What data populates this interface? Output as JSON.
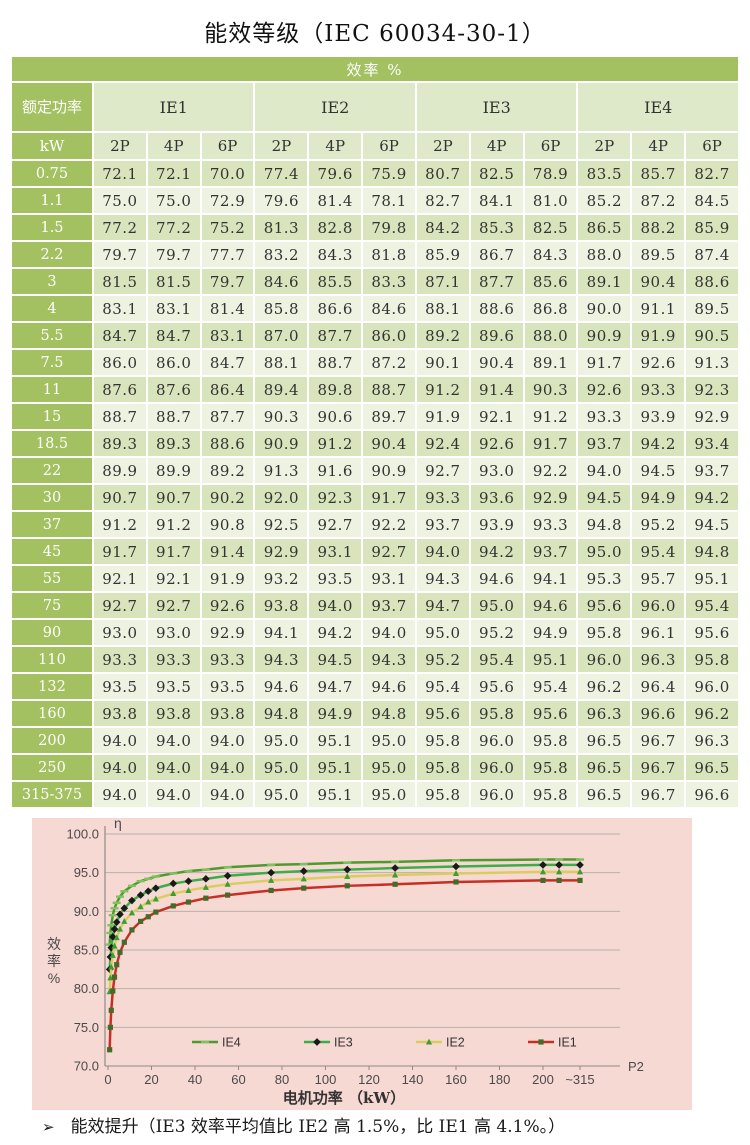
{
  "page": {
    "title": "能效等级（IEC 60034-30-1）"
  },
  "colors": {
    "table_green": "#a3c160",
    "subheader_pale": "#dee9c9",
    "row_dark": "#d8e4bc",
    "row_light": "#edf2e1",
    "chart_background": "#f7d9d3",
    "ie4_line": "#4e9a2e",
    "ie3_line": "#3cae49",
    "ie2_line": "#d9cd60",
    "ie1_line": "#c72f24"
  },
  "table": {
    "efficiency_header": "效率 %",
    "rated_power_label": "额定功率",
    "unit_label": "kW",
    "groups": [
      "IE1",
      "IE2",
      "IE3",
      "IE4"
    ],
    "pole_labels": [
      "2P",
      "4P",
      "6P"
    ],
    "rows": [
      {
        "kw": "0.75",
        "values": [
          "72.1",
          "72.1",
          "70.0",
          "77.4",
          "79.6",
          "75.9",
          "80.7",
          "82.5",
          "78.9",
          "83.5",
          "85.7",
          "82.7"
        ]
      },
      {
        "kw": "1.1",
        "values": [
          "75.0",
          "75.0",
          "72.9",
          "79.6",
          "81.4",
          "78.1",
          "82.7",
          "84.1",
          "81.0",
          "85.2",
          "87.2",
          "84.5"
        ]
      },
      {
        "kw": "1.5",
        "values": [
          "77.2",
          "77.2",
          "75.2",
          "81.3",
          "82.8",
          "79.8",
          "84.2",
          "85.3",
          "82.5",
          "86.5",
          "88.2",
          "85.9"
        ]
      },
      {
        "kw": "2.2",
        "values": [
          "79.7",
          "79.7",
          "77.7",
          "83.2",
          "84.3",
          "81.8",
          "85.9",
          "86.7",
          "84.3",
          "88.0",
          "89.5",
          "87.4"
        ]
      },
      {
        "kw": "3",
        "values": [
          "81.5",
          "81.5",
          "79.7",
          "84.6",
          "85.5",
          "83.3",
          "87.1",
          "87.7",
          "85.6",
          "89.1",
          "90.4",
          "88.6"
        ]
      },
      {
        "kw": "4",
        "values": [
          "83.1",
          "83.1",
          "81.4",
          "85.8",
          "86.6",
          "84.6",
          "88.1",
          "88.6",
          "86.8",
          "90.0",
          "91.1",
          "89.5"
        ]
      },
      {
        "kw": "5.5",
        "values": [
          "84.7",
          "84.7",
          "83.1",
          "87.0",
          "87.7",
          "86.0",
          "89.2",
          "89.6",
          "88.0",
          "90.9",
          "91.9",
          "90.5"
        ]
      },
      {
        "kw": "7.5",
        "values": [
          "86.0",
          "86.0",
          "84.7",
          "88.1",
          "88.7",
          "87.2",
          "90.1",
          "90.4",
          "89.1",
          "91.7",
          "92.6",
          "91.3"
        ]
      },
      {
        "kw": "11",
        "values": [
          "87.6",
          "87.6",
          "86.4",
          "89.4",
          "89.8",
          "88.7",
          "91.2",
          "91.4",
          "90.3",
          "92.6",
          "93.3",
          "92.3"
        ]
      },
      {
        "kw": "15",
        "values": [
          "88.7",
          "88.7",
          "87.7",
          "90.3",
          "90.6",
          "89.7",
          "91.9",
          "92.1",
          "91.2",
          "93.3",
          "93.9",
          "92.9"
        ]
      },
      {
        "kw": "18.5",
        "values": [
          "89.3",
          "89.3",
          "88.6",
          "90.9",
          "91.2",
          "90.4",
          "92.4",
          "92.6",
          "91.7",
          "93.7",
          "94.2",
          "93.4"
        ]
      },
      {
        "kw": "22",
        "values": [
          "89.9",
          "89.9",
          "89.2",
          "91.3",
          "91.6",
          "90.9",
          "92.7",
          "93.0",
          "92.2",
          "94.0",
          "94.5",
          "93.7"
        ]
      },
      {
        "kw": "30",
        "values": [
          "90.7",
          "90.7",
          "90.2",
          "92.0",
          "92.3",
          "91.7",
          "93.3",
          "93.6",
          "92.9",
          "94.5",
          "94.9",
          "94.2"
        ]
      },
      {
        "kw": "37",
        "values": [
          "91.2",
          "91.2",
          "90.8",
          "92.5",
          "92.7",
          "92.2",
          "93.7",
          "93.9",
          "93.3",
          "94.8",
          "95.2",
          "94.5"
        ]
      },
      {
        "kw": "45",
        "values": [
          "91.7",
          "91.7",
          "91.4",
          "92.9",
          "93.1",
          "92.7",
          "94.0",
          "94.2",
          "93.7",
          "95.0",
          "95.4",
          "94.8"
        ]
      },
      {
        "kw": "55",
        "values": [
          "92.1",
          "92.1",
          "91.9",
          "93.2",
          "93.5",
          "93.1",
          "94.3",
          "94.6",
          "94.1",
          "95.3",
          "95.7",
          "95.1"
        ]
      },
      {
        "kw": "75",
        "values": [
          "92.7",
          "92.7",
          "92.6",
          "93.8",
          "94.0",
          "93.7",
          "94.7",
          "95.0",
          "94.6",
          "95.6",
          "96.0",
          "95.4"
        ]
      },
      {
        "kw": "90",
        "values": [
          "93.0",
          "93.0",
          "92.9",
          "94.1",
          "94.2",
          "94.0",
          "95.0",
          "95.2",
          "94.9",
          "95.8",
          "96.1",
          "95.6"
        ]
      },
      {
        "kw": "110",
        "values": [
          "93.3",
          "93.3",
          "93.3",
          "94.3",
          "94.5",
          "94.3",
          "95.2",
          "95.4",
          "95.1",
          "96.0",
          "96.3",
          "95.8"
        ]
      },
      {
        "kw": "132",
        "values": [
          "93.5",
          "93.5",
          "93.5",
          "94.6",
          "94.7",
          "94.6",
          "95.4",
          "95.6",
          "95.4",
          "96.2",
          "96.4",
          "96.0"
        ]
      },
      {
        "kw": "160",
        "values": [
          "93.8",
          "93.8",
          "93.8",
          "94.8",
          "94.9",
          "94.8",
          "95.6",
          "95.8",
          "95.6",
          "96.3",
          "96.6",
          "96.2"
        ]
      },
      {
        "kw": "200",
        "values": [
          "94.0",
          "94.0",
          "94.0",
          "95.0",
          "95.1",
          "95.0",
          "95.8",
          "96.0",
          "95.8",
          "96.5",
          "96.7",
          "96.3"
        ]
      },
      {
        "kw": "250",
        "values": [
          "94.0",
          "94.0",
          "94.0",
          "95.0",
          "95.1",
          "95.0",
          "95.8",
          "96.0",
          "95.8",
          "96.5",
          "96.7",
          "96.5"
        ]
      },
      {
        "kw": "315-375",
        "values": [
          "94.0",
          "94.0",
          "94.0",
          "95.0",
          "95.1",
          "95.0",
          "95.8",
          "96.0",
          "95.8",
          "96.5",
          "96.7",
          "96.6"
        ]
      }
    ]
  },
  "chart_data": {
    "type": "line",
    "title": "",
    "xlabel": "电机功率 （kW）",
    "ylabel": "效率%",
    "y_axis_symbol": "η",
    "x_axis_end_label": "P2",
    "ylim": [
      70,
      100
    ],
    "ytick_step": 5,
    "ytick_labels": [
      "100.0",
      "95.0",
      "90.0",
      "85.0",
      "80.0",
      "75.0",
      "70.0"
    ],
    "x_ticks": [
      {
        "label": "0",
        "v": 0
      },
      {
        "label": "20",
        "v": 20
      },
      {
        "label": "40",
        "v": 40
      },
      {
        "label": "60",
        "v": 60
      },
      {
        "label": "80",
        "v": 80
      },
      {
        "label": "100",
        "v": 100
      },
      {
        "label": "120",
        "v": 120
      },
      {
        "label": "140",
        "v": 140
      },
      {
        "label": "160",
        "v": 160
      },
      {
        "label": "180",
        "v": 180
      },
      {
        "label": "200",
        "v": 200
      },
      {
        "label": "~315",
        "v": 315
      }
    ],
    "x": [
      0.75,
      1.1,
      1.5,
      2.2,
      3,
      4,
      5.5,
      7.5,
      11,
      15,
      18.5,
      22,
      30,
      37,
      45,
      55,
      75,
      90,
      110,
      132,
      160,
      200,
      250,
      315
    ],
    "series": [
      {
        "name": "IE4",
        "color": "#4e9a2e",
        "marker": "dash",
        "marker_color": "#7cc55e",
        "values": [
          85.7,
          87.2,
          88.2,
          89.5,
          90.4,
          91.1,
          91.9,
          92.6,
          93.3,
          93.9,
          94.2,
          94.5,
          94.9,
          95.2,
          95.4,
          95.7,
          96.0,
          96.1,
          96.3,
          96.4,
          96.6,
          96.7,
          96.7,
          96.7
        ]
      },
      {
        "name": "IE3",
        "color": "#3cae49",
        "marker": "diamond",
        "marker_color": "#1a1a1a",
        "values": [
          82.5,
          84.1,
          85.3,
          86.7,
          87.7,
          88.6,
          89.6,
          90.4,
          91.4,
          92.1,
          92.6,
          93.0,
          93.6,
          93.9,
          94.2,
          94.6,
          95.0,
          95.2,
          95.4,
          95.6,
          95.8,
          96.0,
          96.0,
          96.0
        ]
      },
      {
        "name": "IE2",
        "color": "#d9cd60",
        "marker": "triangle",
        "marker_color": "#3f9c35",
        "values": [
          79.6,
          81.4,
          82.8,
          84.3,
          85.5,
          86.6,
          87.7,
          88.7,
          89.8,
          90.6,
          91.2,
          91.6,
          92.3,
          92.7,
          93.1,
          93.5,
          94.0,
          94.2,
          94.5,
          94.7,
          94.9,
          95.1,
          95.1,
          95.1
        ]
      },
      {
        "name": "IE1",
        "color": "#c72f24",
        "marker": "square",
        "marker_color": "#456b29",
        "values": [
          72.1,
          75.0,
          77.2,
          79.7,
          81.5,
          83.1,
          84.7,
          86.0,
          87.6,
          88.7,
          89.3,
          89.9,
          90.7,
          91.2,
          91.7,
          92.1,
          92.7,
          93.0,
          93.3,
          93.5,
          93.8,
          94.0,
          94.0,
          94.0
        ]
      }
    ],
    "legend": [
      "IE4",
      "IE3",
      "IE2",
      "IE1"
    ],
    "legend_position": "bottom-inside",
    "grid": true,
    "background": "#f7d9d3"
  },
  "note": {
    "bullet": "➢",
    "text": "能效提升（IE3 效率平均值比 IE2 高 1.5%，比 IE1 高 4.1%。）"
  }
}
